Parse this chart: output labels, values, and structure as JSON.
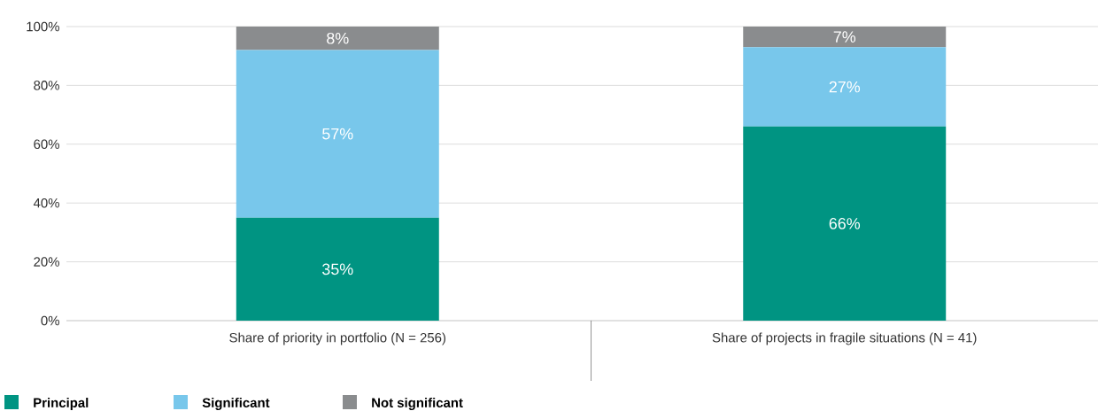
{
  "chart_data": {
    "type": "bar",
    "stacked": true,
    "categories": [
      "Share of priority in portfolio (N = 256)",
      "Share of projects in fragile situations (N = 41)"
    ],
    "series": [
      {
        "name": "Principal",
        "color": "#009482",
        "values": [
          35,
          66
        ],
        "value_labels": [
          "35%",
          "66%"
        ]
      },
      {
        "name": "Significant",
        "color": "#78c7eb",
        "values": [
          57,
          27
        ],
        "value_labels": [
          "57%",
          "27%"
        ]
      },
      {
        "name": "Not significant",
        "color": "#8a8c8e",
        "values": [
          8,
          7
        ],
        "value_labels": [
          "8%",
          "7%"
        ]
      }
    ],
    "ylim": [
      0,
      100
    ],
    "yticks": [
      {
        "value": 0,
        "label": "0%"
      },
      {
        "value": 20,
        "label": "20%"
      },
      {
        "value": 40,
        "label": "40%"
      },
      {
        "value": 60,
        "label": "60%"
      },
      {
        "value": 80,
        "label": "80%"
      },
      {
        "value": 100,
        "label": "100%"
      }
    ],
    "grid": "y",
    "legend": "bottom left"
  }
}
